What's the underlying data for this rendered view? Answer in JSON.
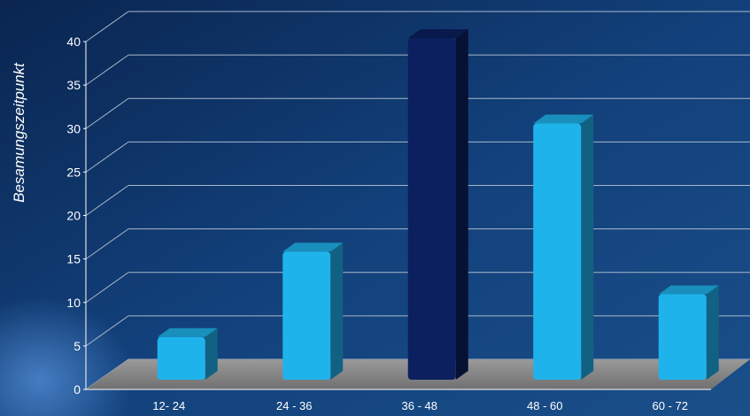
{
  "chart_data": {
    "type": "bar",
    "title": "",
    "xlabel": "",
    "ylabel": "Besamungszeitpunkt",
    "categories": [
      "12- 24",
      "24 - 36",
      "36 - 48",
      "48 - 60",
      "60 - 72"
    ],
    "values": [
      5,
      15,
      40,
      30,
      10
    ],
    "ylim": [
      0,
      40
    ],
    "yticks": [
      "0",
      "5",
      "10",
      "15",
      "20",
      "25",
      "30",
      "35",
      "40"
    ],
    "grid": true,
    "legend": "none",
    "colors": {
      "bar": "#1fb3ec",
      "highlight_bar": "#0c1f5e",
      "floor": "#8a8a8a",
      "grid": "#a9b8cc",
      "background": "#0d2f5c"
    },
    "highlight_index": 2
  }
}
